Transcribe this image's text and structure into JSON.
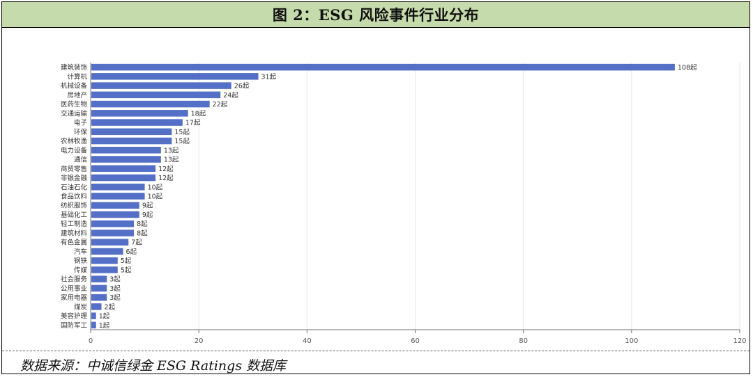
{
  "header": {
    "title": "图 2：ESG 风险事件行业分布"
  },
  "footer": {
    "source": "数据来源：中诚信绿金 ESG Ratings 数据库"
  },
  "colors": {
    "bar": "#5470c6",
    "grid": "#e6e6e6",
    "axis": "#6e7079",
    "header_bg": "#c6dbab"
  },
  "chart_data": {
    "type": "bar",
    "orientation": "horizontal",
    "categories": [
      "建筑装饰",
      "计算机",
      "机械设备",
      "房地产",
      "医药生物",
      "交通运输",
      "电子",
      "环保",
      "农林牧渔",
      "电力设备",
      "通信",
      "商贸零售",
      "非银金融",
      "石油石化",
      "食品饮料",
      "纺织服饰",
      "基础化工",
      "轻工制造",
      "建筑材料",
      "有色金属",
      "汽车",
      "钢铁",
      "传媒",
      "社会服务",
      "公用事业",
      "家用电器",
      "煤炭",
      "美容护理",
      "国防军工"
    ],
    "values": [
      108,
      31,
      26,
      24,
      22,
      18,
      17,
      15,
      15,
      13,
      13,
      12,
      12,
      10,
      10,
      9,
      9,
      8,
      8,
      7,
      6,
      5,
      5,
      3,
      3,
      3,
      2,
      1,
      1
    ],
    "value_labels": [
      "108起",
      "31起",
      "26起",
      "24起",
      "22起",
      "18起",
      "17起",
      "15起",
      "15起",
      "13起",
      "13起",
      "12起",
      "12起",
      "10起",
      "10起",
      "9起",
      "9起",
      "8起",
      "8起",
      "7起",
      "6起",
      "5起",
      "5起",
      "3起",
      "3起",
      "3起",
      "2起",
      "1起",
      "1起"
    ],
    "xlim": [
      0,
      120
    ],
    "xticks": [
      "0",
      "20",
      "40",
      "60",
      "80",
      "100",
      "120"
    ],
    "grid": true,
    "title": "",
    "xlabel": "",
    "ylabel": ""
  }
}
